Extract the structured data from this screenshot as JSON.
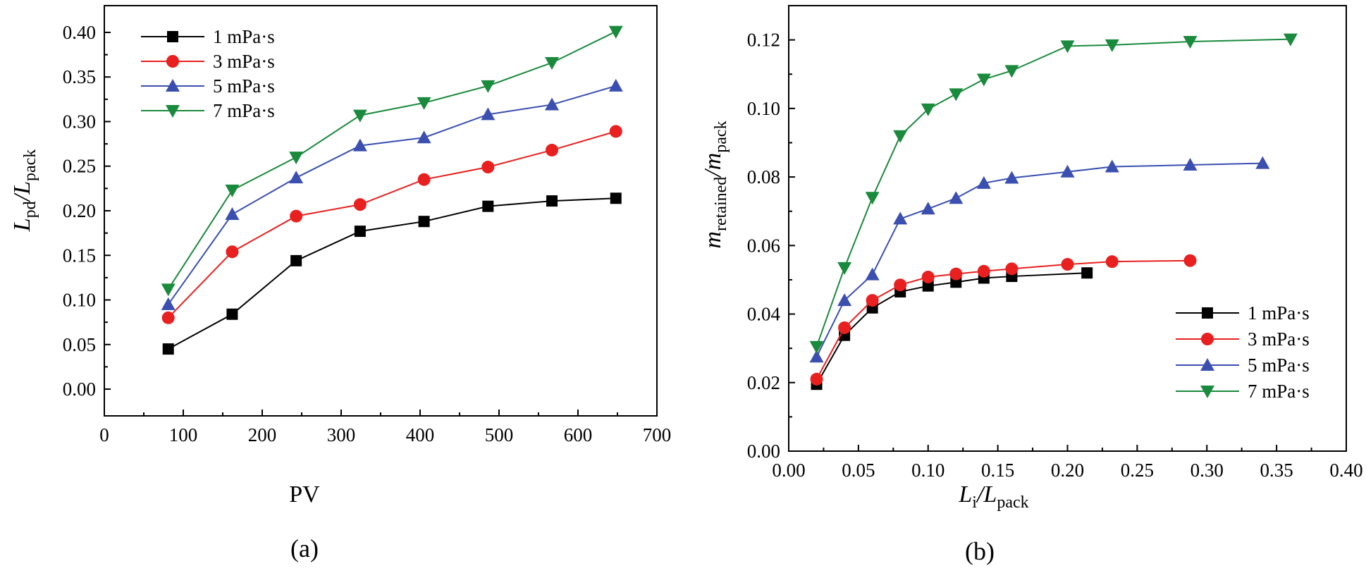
{
  "chart_data": [
    {
      "type": "line",
      "panel": "(a)",
      "xlabel": "PV",
      "ylabel_main": "L",
      "ylabel_sub1": "pd",
      "ylabel_mid": "/L",
      "ylabel_sub2": "pack",
      "xlim": [
        0,
        700
      ],
      "ylim": [
        -0.03,
        0.43
      ],
      "xticks": [
        0,
        100,
        200,
        300,
        400,
        500,
        600,
        700
      ],
      "yticks": [
        0.0,
        0.05,
        0.1,
        0.15,
        0.2,
        0.25,
        0.3,
        0.35,
        0.4
      ],
      "xtick_labels": [
        "0",
        "100",
        "200",
        "300",
        "400",
        "500",
        "600",
        "700"
      ],
      "ytick_labels": [
        "0.00",
        "0.05",
        "0.10",
        "0.15",
        "0.20",
        "0.25",
        "0.30",
        "0.35",
        "0.40"
      ],
      "legend_position": "top-left",
      "series": [
        {
          "name": "1 mPa·s",
          "color": "#000000",
          "marker": "square",
          "x": [
            81,
            162,
            243,
            324,
            405,
            486,
            567,
            648
          ],
          "y": [
            0.045,
            0.084,
            0.144,
            0.177,
            0.188,
            0.205,
            0.211,
            0.214
          ]
        },
        {
          "name": "3 mPa·s",
          "color": "#e8201f",
          "marker": "circle",
          "x": [
            81,
            162,
            243,
            324,
            405,
            486,
            567,
            648
          ],
          "y": [
            0.08,
            0.154,
            0.194,
            0.207,
            0.235,
            0.249,
            0.268,
            0.289
          ]
        },
        {
          "name": "5 mPa·s",
          "color": "#3a4fb0",
          "marker": "triangle-up",
          "x": [
            81,
            162,
            243,
            324,
            405,
            486,
            567,
            648
          ],
          "y": [
            0.095,
            0.196,
            0.237,
            0.273,
            0.282,
            0.308,
            0.319,
            0.34
          ]
        },
        {
          "name": "7 mPa·s",
          "color": "#1a8a3c",
          "marker": "triangle-down",
          "x": [
            81,
            162,
            243,
            324,
            405,
            486,
            567,
            648
          ],
          "y": [
            0.112,
            0.223,
            0.26,
            0.307,
            0.321,
            0.34,
            0.366,
            0.401
          ]
        }
      ]
    },
    {
      "type": "line",
      "panel": "(b)",
      "xlabel_main": "L",
      "xlabel_sub1": "i",
      "xlabel_mid": "/L",
      "xlabel_sub2": "pack",
      "ylabel_main": "m",
      "ylabel_sub1": "retained",
      "ylabel_mid": "/m",
      "ylabel_sub2": "pack",
      "xlim": [
        0.0,
        0.4
      ],
      "ylim": [
        0.0,
        0.13
      ],
      "xticks": [
        0.0,
        0.05,
        0.1,
        0.15,
        0.2,
        0.25,
        0.3,
        0.35,
        0.4
      ],
      "yticks": [
        0.0,
        0.02,
        0.04,
        0.06,
        0.08,
        0.1,
        0.12
      ],
      "xtick_labels": [
        "0.00",
        "0.05",
        "0.10",
        "0.15",
        "0.20",
        "0.25",
        "0.30",
        "0.35",
        "0.40"
      ],
      "ytick_labels": [
        "0.00",
        "0.02",
        "0.04",
        "0.06",
        "0.08",
        "0.10",
        "0.12"
      ],
      "legend_position": "bottom-right",
      "series": [
        {
          "name": "1 mPa·s",
          "color": "#000000",
          "marker": "square",
          "x": [
            0.02,
            0.04,
            0.06,
            0.08,
            0.1,
            0.12,
            0.14,
            0.16,
            0.214
          ],
          "y": [
            0.0195,
            0.0338,
            0.0418,
            0.0465,
            0.0482,
            0.0493,
            0.0505,
            0.051,
            0.052
          ]
        },
        {
          "name": "3 mPa·s",
          "color": "#e8201f",
          "marker": "circle",
          "x": [
            0.02,
            0.04,
            0.06,
            0.08,
            0.1,
            0.12,
            0.14,
            0.16,
            0.2,
            0.232,
            0.288
          ],
          "y": [
            0.021,
            0.036,
            0.044,
            0.0485,
            0.0508,
            0.0517,
            0.0525,
            0.0532,
            0.0545,
            0.0553,
            0.0556
          ]
        },
        {
          "name": "5 mPa·s",
          "color": "#3a4fb0",
          "marker": "triangle-up",
          "x": [
            0.02,
            0.04,
            0.06,
            0.08,
            0.1,
            0.12,
            0.14,
            0.16,
            0.2,
            0.232,
            0.288,
            0.34
          ],
          "y": [
            0.0275,
            0.044,
            0.0515,
            0.0678,
            0.0707,
            0.0738,
            0.0782,
            0.0797,
            0.0815,
            0.083,
            0.0835,
            0.084
          ]
        },
        {
          "name": "7 mPa·s",
          "color": "#1a8a3c",
          "marker": "triangle-down",
          "x": [
            0.02,
            0.04,
            0.06,
            0.08,
            0.1,
            0.12,
            0.14,
            0.16,
            0.2,
            0.232,
            0.288,
            0.36
          ],
          "y": [
            0.0305,
            0.0535,
            0.074,
            0.092,
            0.0998,
            0.1042,
            0.1085,
            0.111,
            0.1182,
            0.1185,
            0.1195,
            0.1202
          ]
        }
      ]
    }
  ]
}
